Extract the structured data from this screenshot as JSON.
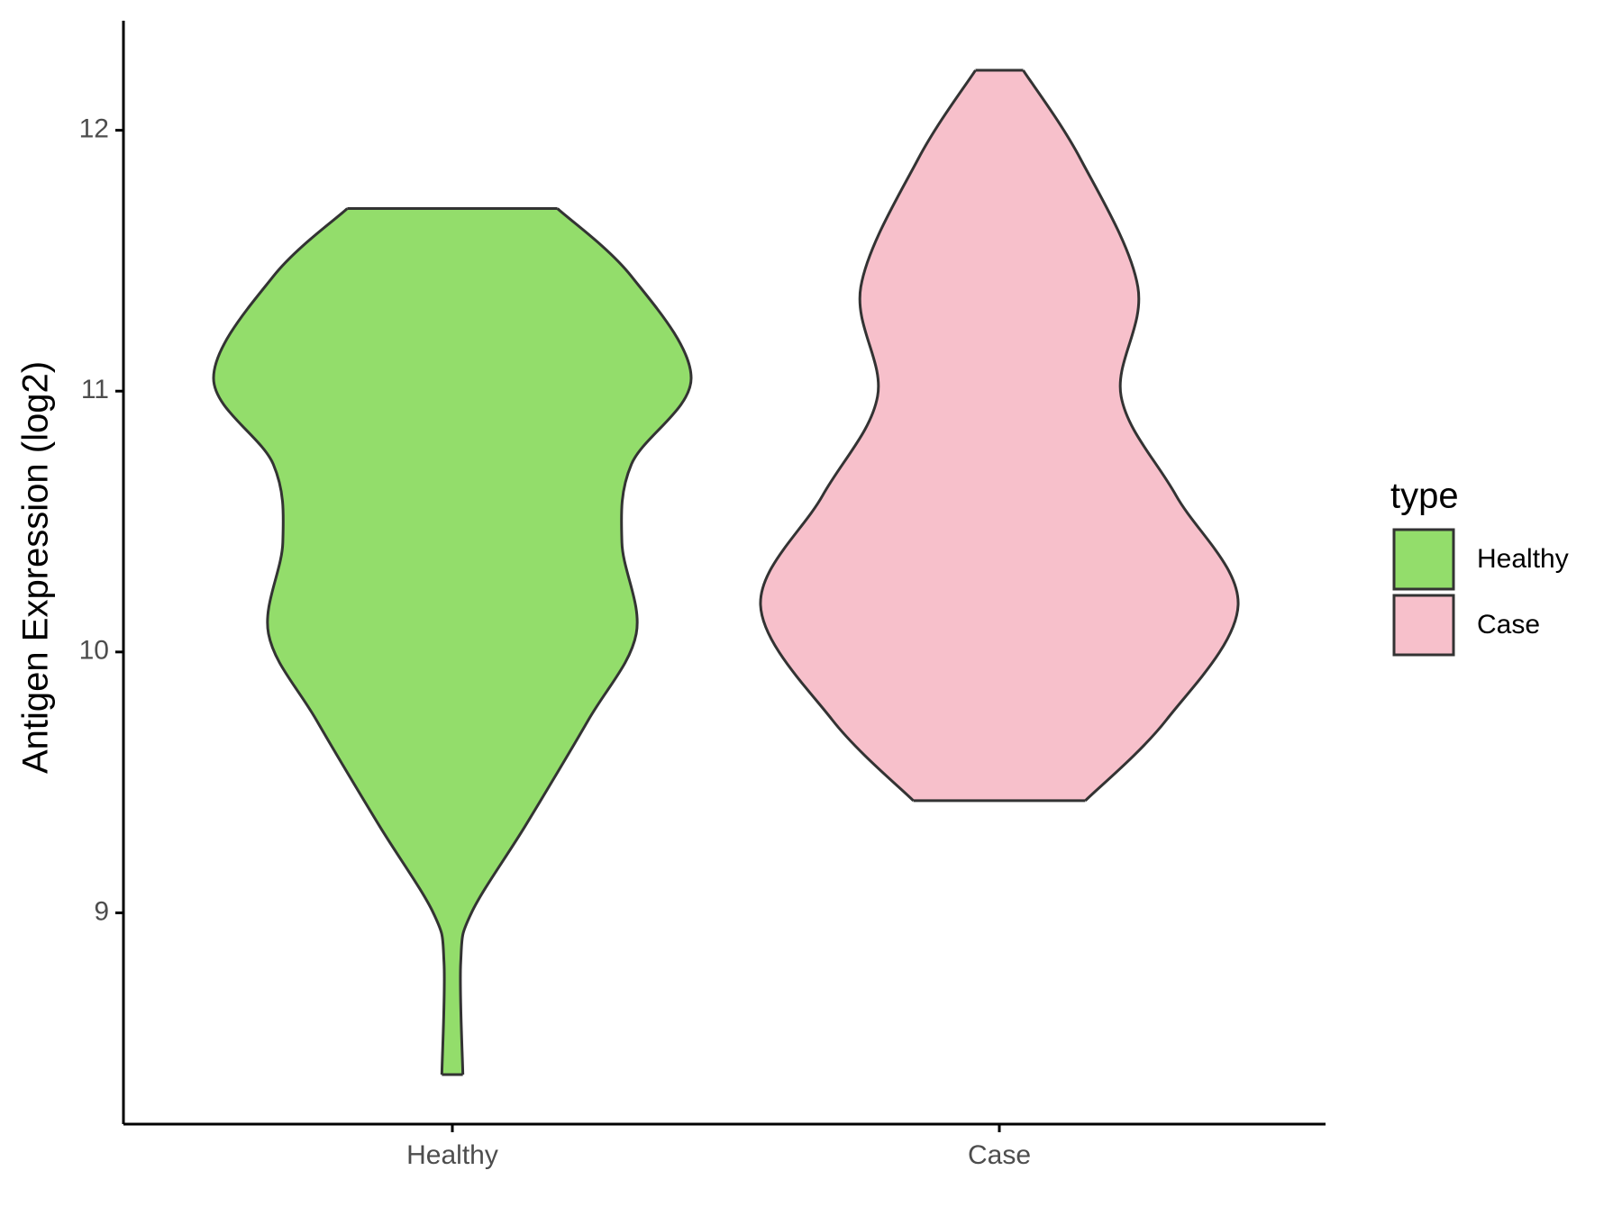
{
  "chart_data": {
    "type": "violin",
    "y_label": "Antigen Expression (log2)",
    "categories": [
      "Healthy",
      "Case"
    ],
    "legend_title": "type",
    "legend_position": "right",
    "ylim": [
      8.19,
      12.42
    ],
    "yticks": [
      9,
      10,
      11,
      12
    ],
    "grid": false,
    "series": [
      {
        "name": "Healthy",
        "color": "#93dd6b",
        "y": [
          11.7,
          11.44,
          11.05,
          10.72,
          10.42,
          10.07,
          9.74,
          9.34,
          9.0,
          8.81,
          8.38
        ],
        "density": [
          0.44,
          0.75,
          1.0,
          0.75,
          0.71,
          0.77,
          0.57,
          0.31,
          0.08,
          0.035,
          0.044
        ]
      },
      {
        "name": "Case",
        "color": "#f7c0cb",
        "y": [
          12.23,
          11.89,
          11.4,
          10.98,
          10.6,
          10.18,
          9.74,
          9.43
        ],
        "density": [
          0.1,
          0.34,
          0.58,
          0.51,
          0.74,
          1.0,
          0.7,
          0.36
        ]
      }
    ]
  }
}
